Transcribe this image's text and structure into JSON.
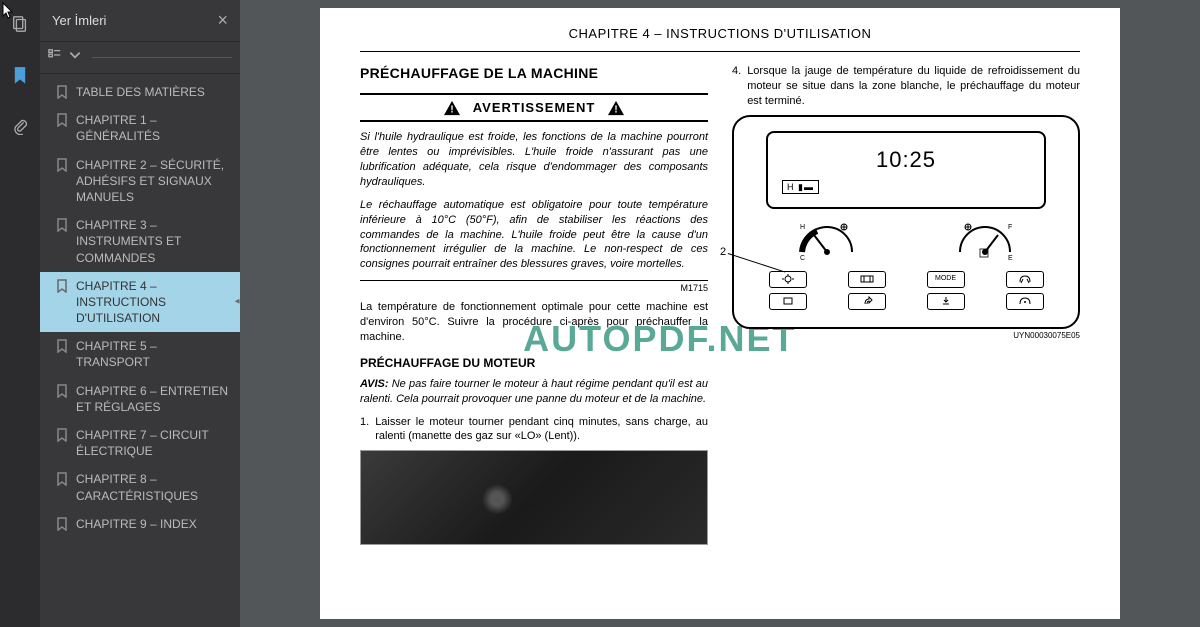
{
  "panel": {
    "title": "Yer İmleri",
    "close": "×"
  },
  "bookmarks": [
    {
      "label": "TABLE DES MATIÈRES",
      "active": false
    },
    {
      "label": "CHAPITRE 1 – GÉNÉRALITÉS",
      "active": false
    },
    {
      "label": "CHAPITRE 2 – SÉCURITÉ, ADHÉSIFS ET SIGNAUX MANUELS",
      "active": false
    },
    {
      "label": "CHAPITRE 3 – INSTRUMENTS ET COMMANDES",
      "active": false
    },
    {
      "label": "CHAPITRE 4 – INSTRUCTIONS D'UTILISATION",
      "active": true
    },
    {
      "label": "CHAPITRE 5 – TRANSPORT",
      "active": false
    },
    {
      "label": "CHAPITRE 6 – ENTRETIEN ET RÉGLAGES",
      "active": false
    },
    {
      "label": "CHAPITRE 7 – CIRCUIT ÉLECTRIQUE",
      "active": false
    },
    {
      "label": "CHAPITRE 8 – CARACTÉRISTIQUES",
      "active": false
    },
    {
      "label": "CHAPITRE 9 – INDEX",
      "active": false
    }
  ],
  "doc": {
    "chapter_header": "CHAPITRE 4 – INSTRUCTIONS D'UTILISATION",
    "title": "PRÉCHAUFFAGE DE LA MACHINE",
    "warning_label": "AVERTISSEMENT",
    "warn_p1": "Si l'huile hydraulique est froide, les fonctions de la machine pourront être lentes ou imprévisibles. L'huile froide n'assurant pas une lubrification adéquate, cela risque d'endommager des composants hydrauliques.",
    "warn_p2": "Le réchauffage automatique est obligatoire pour toute température inférieure à 10°C (50°F), afin de stabiliser les réactions des commandes de la machine. L'huile froide peut être la cause d'un fonctionnement irrégulier de la machine. Le non-respect de ces consignes pourrait entraîner des blessures graves, voire mortelles.",
    "ref1": "M1715",
    "temp_p": "La température de fonctionnement optimale pour cette machine est d'environ 50°C. Suivre la procédure ci-après pour préchauffer la machine.",
    "subhead": "PRÉCHAUFFAGE DU MOTEUR",
    "avis_label": "AVIS:",
    "avis_text": "Ne pas faire tourner le moteur à haut régime pendant qu'il est au ralenti. Cela pourrait provoquer une panne du moteur et de la machine.",
    "step1_num": "1.",
    "step1": "Laisser le moteur tourner pendant cinq minutes, sans charge, au ralenti (manette des gaz sur «LO» (Lent)).",
    "step4_num": "4.",
    "step4": "Lorsque la jauge de température du liquide de refroidissement du moteur se situe dans la zone blanche, le préchauffage du moteur est terminé.",
    "clock": "10:25",
    "screen_sub": "H ▮▬",
    "leader_label": "2",
    "gauge_letters": {
      "h": "H",
      "c": "C",
      "f": "F",
      "e": "E"
    },
    "btn_mode": "MODE",
    "diagram_ref": "UYN00030075E05"
  },
  "watermark": "AUTOPDF.NET",
  "colors": {
    "sidebar_bg": "#38383a",
    "iconstrip_bg": "#2c2c2e",
    "active_bookmark_bg": "#a3d4e8",
    "watermark_color": "#5aa896",
    "page_bg": "#ffffff"
  }
}
